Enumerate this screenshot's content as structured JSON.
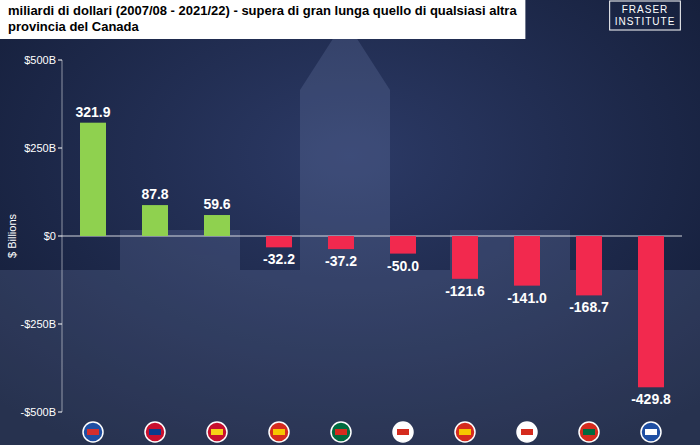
{
  "chart_data": {
    "type": "bar",
    "title": "miliardi di dollari (2007/08 - 2021/22) - supera di gran lunga quello di qualsiasi altra provincia del Canada",
    "logo": "FRASER INSTITUTE",
    "y_label": "$ Billions",
    "categories": [
      null,
      null,
      null,
      null,
      null,
      null,
      null,
      null,
      null,
      null
    ],
    "values": [
      321.9,
      87.8,
      59.6,
      -32.2,
      -37.2,
      -50.0,
      -121.6,
      -141.0,
      -168.7,
      -429.8
    ],
    "value_labels": [
      "321.9",
      "87.8",
      "59.6",
      "-32.2",
      "-37.2",
      "-50.0",
      "-121.6",
      "-141.0",
      "-168.7",
      "-429.8"
    ],
    "colors": [
      "#8fd14f",
      "#8fd14f",
      "#8fd14f",
      "#f2294e",
      "#f2294e",
      "#f2294e",
      "#f2294e",
      "#f2294e",
      "#f2294e",
      "#f2294e"
    ],
    "ylim": [
      -500,
      500
    ],
    "yticks": [
      {
        "value": 500,
        "label": "$500B"
      },
      {
        "value": 250,
        "label": "$250B"
      },
      {
        "value": 0,
        "label": "$0"
      },
      {
        "value": -250,
        "label": "-$250B"
      },
      {
        "value": -500,
        "label": "-$500B"
      }
    ],
    "grid": false,
    "data_labels": true
  }
}
